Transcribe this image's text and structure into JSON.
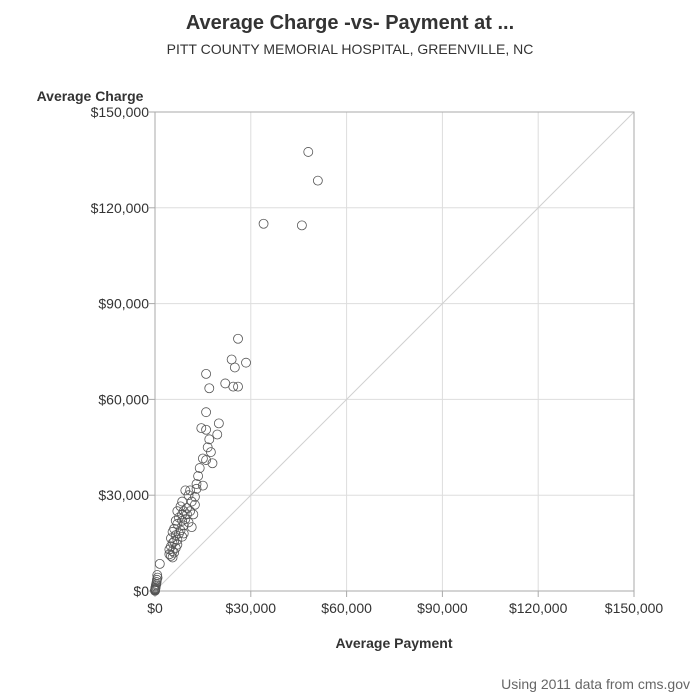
{
  "chart_data": {
    "type": "scatter",
    "title": "Average Charge -vs- Payment at ...",
    "subtitle": "PITT COUNTY MEMORIAL HOSPITAL, GREENVILLE, NC",
    "xlabel": "Average Payment",
    "ylabel": "Average Charge",
    "xlim": [
      0,
      150000
    ],
    "ylim": [
      0,
      150000
    ],
    "x_ticks": [
      "$0",
      "$30,000",
      "$60,000",
      "$90,000",
      "$120,000",
      "$150,000"
    ],
    "y_ticks": [
      "$0",
      "$30,000",
      "$60,000",
      "$90,000",
      "$120,000",
      "$150,000"
    ],
    "grid": true,
    "reference_line": "y = x",
    "footnote": "Using 2011 data from cms.gov",
    "colors": {
      "marker": "#555555",
      "grid": "#dddddd",
      "axis": "#aaaaaa",
      "reference": "#d0d0d0"
    },
    "points": [
      {
        "x": 48000,
        "y": 137500
      },
      {
        "x": 51000,
        "y": 128500
      },
      {
        "x": 34000,
        "y": 115000
      },
      {
        "x": 46000,
        "y": 114500
      },
      {
        "x": 26000,
        "y": 79000
      },
      {
        "x": 24000,
        "y": 72500
      },
      {
        "x": 28500,
        "y": 71500
      },
      {
        "x": 25000,
        "y": 70000
      },
      {
        "x": 16000,
        "y": 68000
      },
      {
        "x": 17000,
        "y": 63500
      },
      {
        "x": 22000,
        "y": 65000
      },
      {
        "x": 24500,
        "y": 64000
      },
      {
        "x": 26000,
        "y": 64000
      },
      {
        "x": 16000,
        "y": 56000
      },
      {
        "x": 20000,
        "y": 52500
      },
      {
        "x": 14500,
        "y": 51000
      },
      {
        "x": 16000,
        "y": 50500
      },
      {
        "x": 19500,
        "y": 49000
      },
      {
        "x": 17000,
        "y": 47500
      },
      {
        "x": 16500,
        "y": 45000
      },
      {
        "x": 17500,
        "y": 43500
      },
      {
        "x": 15000,
        "y": 41500
      },
      {
        "x": 16000,
        "y": 41000
      },
      {
        "x": 18000,
        "y": 40000
      },
      {
        "x": 14000,
        "y": 38500
      },
      {
        "x": 13500,
        "y": 36000
      },
      {
        "x": 13000,
        "y": 33500
      },
      {
        "x": 15000,
        "y": 33000
      },
      {
        "x": 13000,
        "y": 32000
      },
      {
        "x": 9500,
        "y": 31500
      },
      {
        "x": 11000,
        "y": 31500
      },
      {
        "x": 10500,
        "y": 30000
      },
      {
        "x": 12500,
        "y": 29500
      },
      {
        "x": 8500,
        "y": 28000
      },
      {
        "x": 11500,
        "y": 28000
      },
      {
        "x": 12500,
        "y": 27000
      },
      {
        "x": 8000,
        "y": 26500
      },
      {
        "x": 10000,
        "y": 26000
      },
      {
        "x": 7000,
        "y": 25000
      },
      {
        "x": 9000,
        "y": 25000
      },
      {
        "x": 11000,
        "y": 25000
      },
      {
        "x": 8500,
        "y": 24000
      },
      {
        "x": 10000,
        "y": 24000
      },
      {
        "x": 12000,
        "y": 24000
      },
      {
        "x": 7500,
        "y": 23000
      },
      {
        "x": 9500,
        "y": 22500
      },
      {
        "x": 6500,
        "y": 22000
      },
      {
        "x": 8500,
        "y": 22000
      },
      {
        "x": 10500,
        "y": 21500
      },
      {
        "x": 7000,
        "y": 21000
      },
      {
        "x": 9000,
        "y": 20500
      },
      {
        "x": 11500,
        "y": 20000
      },
      {
        "x": 6000,
        "y": 19500
      },
      {
        "x": 8000,
        "y": 19000
      },
      {
        "x": 5500,
        "y": 18500
      },
      {
        "x": 7500,
        "y": 18000
      },
      {
        "x": 9000,
        "y": 18000
      },
      {
        "x": 6500,
        "y": 17500
      },
      {
        "x": 8500,
        "y": 17000
      },
      {
        "x": 5000,
        "y": 16500
      },
      {
        "x": 7000,
        "y": 16000
      },
      {
        "x": 6000,
        "y": 15500
      },
      {
        "x": 5500,
        "y": 15000
      },
      {
        "x": 7000,
        "y": 14500
      },
      {
        "x": 5000,
        "y": 14000
      },
      {
        "x": 6500,
        "y": 13500
      },
      {
        "x": 4500,
        "y": 13000
      },
      {
        "x": 5500,
        "y": 12500
      },
      {
        "x": 6000,
        "y": 12000
      },
      {
        "x": 4500,
        "y": 11500
      },
      {
        "x": 5000,
        "y": 11000
      },
      {
        "x": 5500,
        "y": 10500
      },
      {
        "x": 1500,
        "y": 8500
      },
      {
        "x": 700,
        "y": 5000
      },
      {
        "x": 800,
        "y": 4200
      },
      {
        "x": 600,
        "y": 3500
      },
      {
        "x": 500,
        "y": 2800
      },
      {
        "x": 400,
        "y": 2200
      },
      {
        "x": 300,
        "y": 1800
      },
      {
        "x": 200,
        "y": 1400
      },
      {
        "x": 150,
        "y": 1000
      },
      {
        "x": 100,
        "y": 700
      },
      {
        "x": 60,
        "y": 500
      },
      {
        "x": 30,
        "y": 300
      },
      {
        "x": 20,
        "y": 150
      },
      {
        "x": 10,
        "y": 80
      }
    ]
  }
}
